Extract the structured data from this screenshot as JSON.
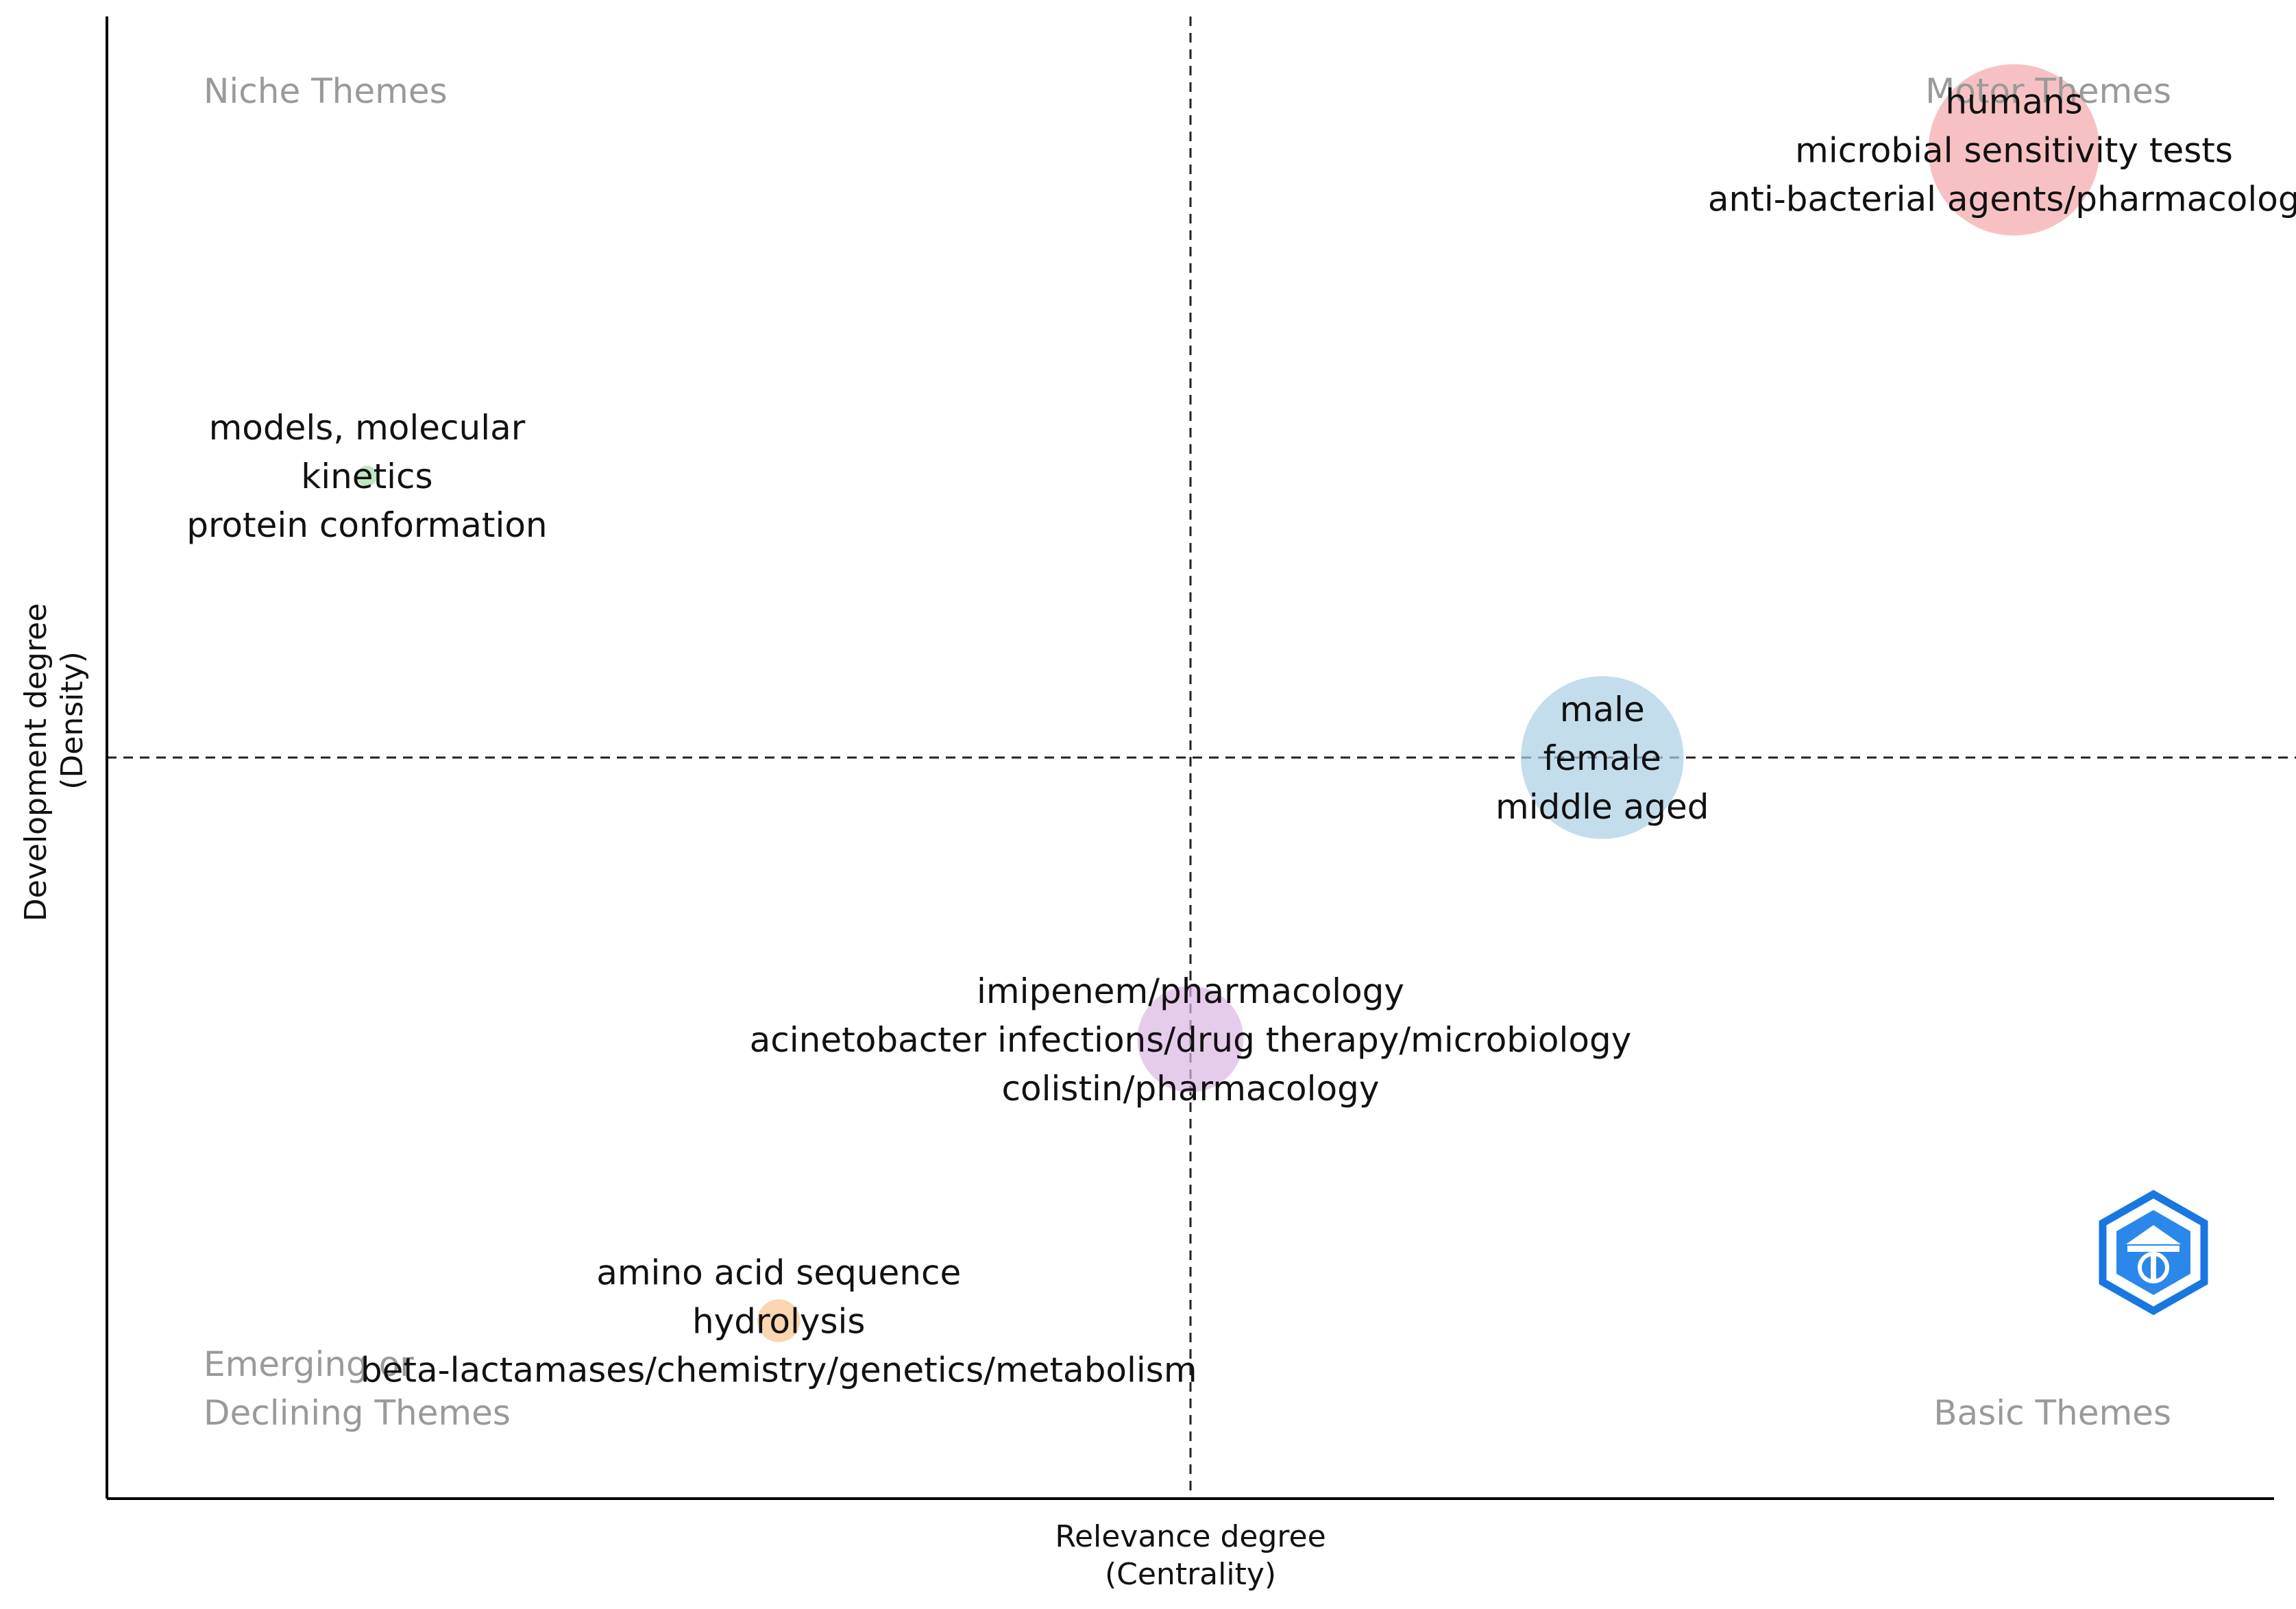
{
  "chart_data": {
    "type": "scatter",
    "subtype": "thematic-map",
    "xlabel": "Relevance degree",
    "xlabel_sub": "(Centrality)",
    "ylabel": "Development degree",
    "ylabel_sub": "(Density)",
    "xlim": [
      0,
      1
    ],
    "ylim": [
      0,
      1
    ],
    "x_reference": 0.5,
    "y_reference": 0.5,
    "quadrants": [
      {
        "id": "niche",
        "lines": [
          "Niche Themes"
        ]
      },
      {
        "id": "motor",
        "lines": [
          "Motor Themes"
        ]
      },
      {
        "id": "emerging",
        "lines": [
          "Emerging or",
          "Declining Themes"
        ]
      },
      {
        "id": "basic",
        "lines": [
          "Basic Themes"
        ]
      }
    ],
    "clusters": [
      {
        "name": "humans",
        "x": 0.88,
        "y": 0.91,
        "size": 1.0,
        "color": "#f4a6ab",
        "labels": [
          "humans",
          "microbial sensitivity tests",
          "anti-bacterial agents/pharmacology"
        ]
      },
      {
        "name": "models, molecular",
        "x": 0.12,
        "y": 0.69,
        "size": 0.12,
        "color": "#a8dca8",
        "labels": [
          "models, molecular",
          "kinetics",
          "protein conformation"
        ]
      },
      {
        "name": "male",
        "x": 0.69,
        "y": 0.5,
        "size": 0.95,
        "color": "#a9cfe6",
        "labels": [
          "male",
          "female",
          "middle aged"
        ]
      },
      {
        "name": "imipenem/pharmacology",
        "x": 0.5,
        "y": 0.31,
        "size": 0.62,
        "color": "#dcb6e2",
        "labels": [
          "imipenem/pharmacology",
          "acinetobacter infections/drug therapy/microbiology",
          "colistin/pharmacology"
        ]
      },
      {
        "name": "amino acid sequence",
        "x": 0.31,
        "y": 0.12,
        "size": 0.25,
        "color": "#f7c48f",
        "labels": [
          "amino acid sequence",
          "hydrolysis",
          "beta-lactamases/chemistry/genetics/metabolism"
        ]
      }
    ]
  }
}
